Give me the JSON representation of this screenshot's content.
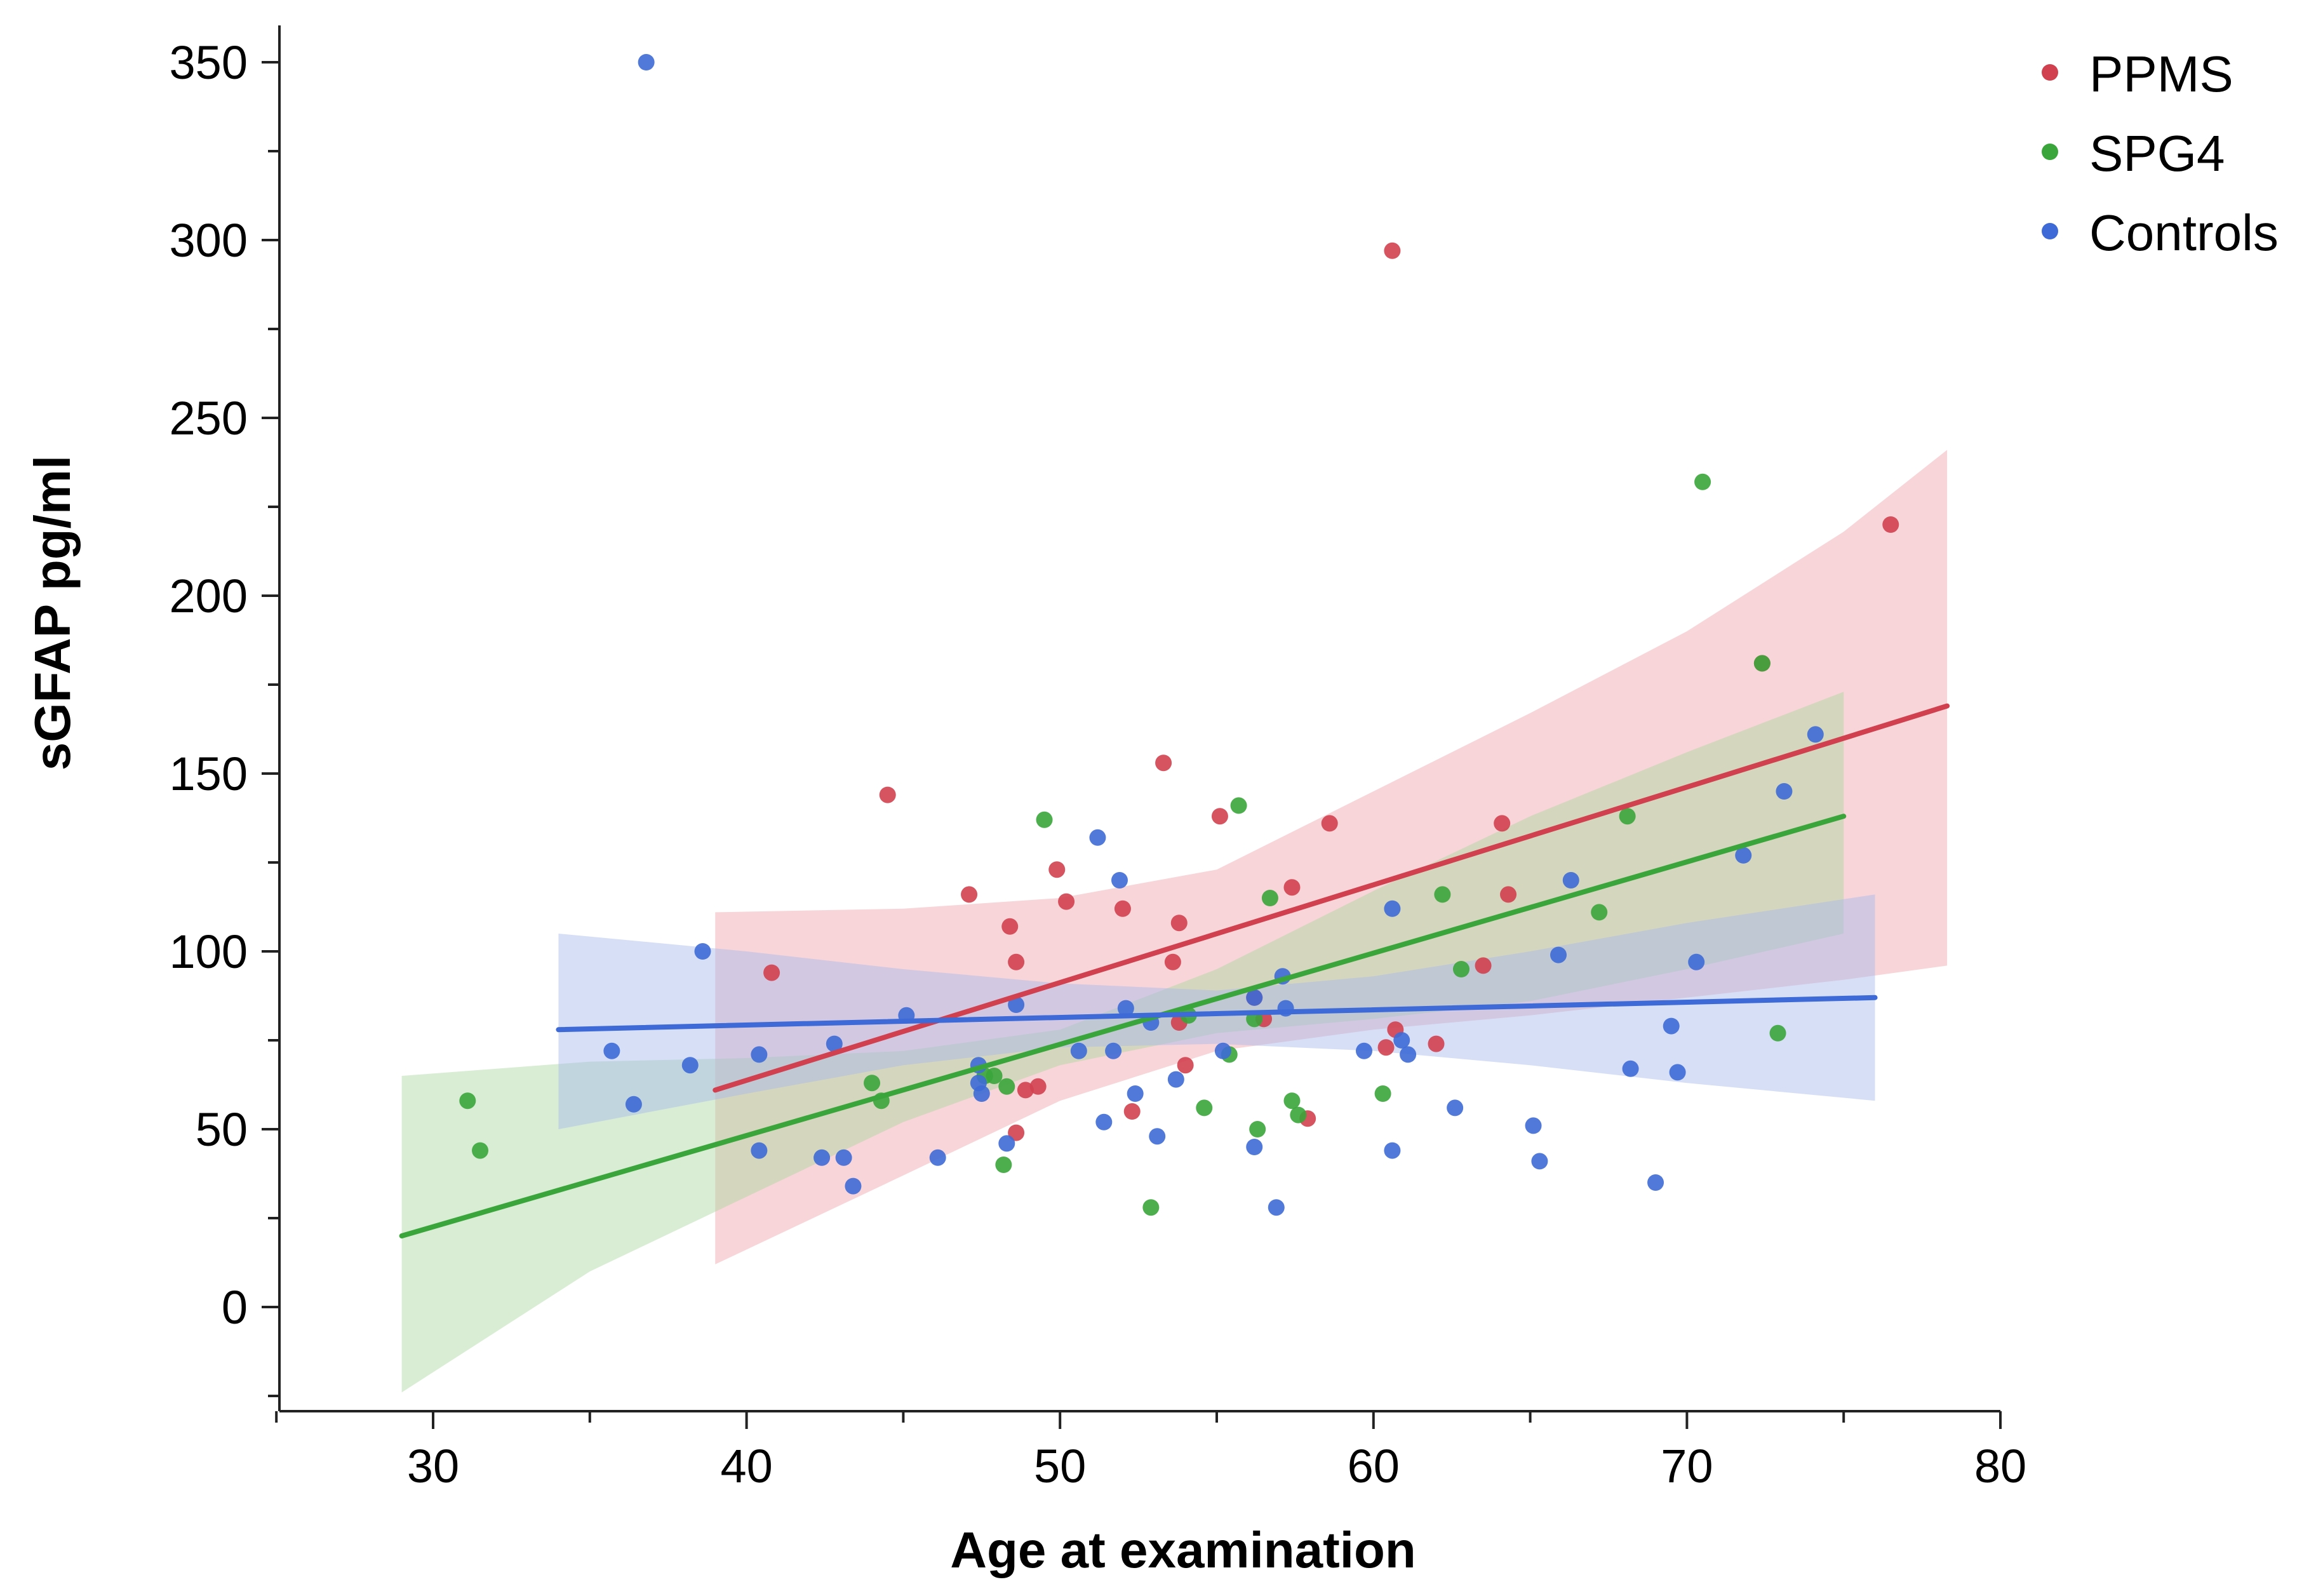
{
  "chart_data": {
    "type": "scatter",
    "title": "",
    "xlabel": "Age at examination",
    "ylabel": "sGFAP pg/ml",
    "xlim": [
      25,
      80
    ],
    "ylim": [
      -30,
      360
    ],
    "xticks": [
      30,
      40,
      50,
      60,
      70,
      80
    ],
    "yticks": [
      0,
      50,
      100,
      150,
      200,
      250,
      300,
      350
    ],
    "legend_position": "top-right",
    "series": [
      {
        "name": "PPMS",
        "color": "#d1404f",
        "opacity": 0.9,
        "band_color": "#ef9aa3",
        "band_opacity": 0.42,
        "points": [
          [
            40.8,
            94
          ],
          [
            44.5,
            144
          ],
          [
            47.1,
            116
          ],
          [
            48.4,
            107
          ],
          [
            48.6,
            97
          ],
          [
            48.6,
            49
          ],
          [
            48.9,
            61
          ],
          [
            49.3,
            62
          ],
          [
            49.9,
            123
          ],
          [
            50.2,
            114
          ],
          [
            52.0,
            112
          ],
          [
            52.3,
            55
          ],
          [
            53.3,
            153
          ],
          [
            53.6,
            97
          ],
          [
            53.8,
            108
          ],
          [
            53.8,
            80
          ],
          [
            54.0,
            68
          ],
          [
            55.1,
            138
          ],
          [
            56.2,
            87
          ],
          [
            56.5,
            81
          ],
          [
            57.4,
            118
          ],
          [
            57.9,
            53
          ],
          [
            58.6,
            136
          ],
          [
            60.4,
            73
          ],
          [
            60.6,
            297
          ],
          [
            60.7,
            78
          ],
          [
            62.0,
            74
          ],
          [
            63.5,
            96
          ],
          [
            64.1,
            136
          ],
          [
            64.3,
            116
          ],
          [
            72.4,
            181
          ],
          [
            76.5,
            220
          ]
        ],
        "fit": {
          "x": [
            39,
            78.3
          ],
          "y": [
            61,
            169
          ]
        },
        "band": {
          "x": [
            39,
            45,
            50,
            55,
            60,
            65,
            70,
            75,
            78.3
          ],
          "lower": [
            12,
            37,
            58,
            72,
            78,
            82,
            87,
            92,
            96
          ],
          "upper": [
            111,
            112,
            115,
            123,
            145,
            167,
            190,
            218,
            241
          ]
        }
      },
      {
        "name": "SPG4",
        "color": "#3aa53a",
        "opacity": 0.9,
        "band_color": "#a8d8a0",
        "band_opacity": 0.45,
        "points": [
          [
            31.1,
            58
          ],
          [
            31.5,
            44
          ],
          [
            44.0,
            63
          ],
          [
            44.3,
            58
          ],
          [
            47.6,
            65
          ],
          [
            47.9,
            65
          ],
          [
            48.2,
            40
          ],
          [
            48.3,
            62
          ],
          [
            49.5,
            137
          ],
          [
            52.9,
            28
          ],
          [
            54.1,
            82
          ],
          [
            54.6,
            56
          ],
          [
            55.4,
            71
          ],
          [
            55.7,
            141
          ],
          [
            56.2,
            81
          ],
          [
            56.3,
            50
          ],
          [
            56.7,
            115
          ],
          [
            57.4,
            58
          ],
          [
            57.6,
            54
          ],
          [
            60.3,
            60
          ],
          [
            62.2,
            116
          ],
          [
            62.8,
            95
          ],
          [
            67.2,
            111
          ],
          [
            68.1,
            138
          ],
          [
            70.5,
            232
          ],
          [
            72.4,
            181
          ],
          [
            72.9,
            77
          ]
        ],
        "fit": {
          "x": [
            29,
            75
          ],
          "y": [
            20,
            138
          ]
        },
        "band": {
          "x": [
            29,
            35,
            40,
            45,
            50,
            55,
            60,
            65,
            70,
            75
          ],
          "lower": [
            -24,
            10,
            31,
            52,
            68,
            77,
            81,
            86,
            95,
            105
          ],
          "upper": [
            65,
            69,
            70,
            72,
            78,
            95,
            117,
            138,
            156,
            173
          ]
        }
      },
      {
        "name": "Controls",
        "color": "#3d6ad6",
        "opacity": 0.9,
        "band_color": "#a6b7ee",
        "band_opacity": 0.45,
        "points": [
          [
            35.7,
            72
          ],
          [
            36.4,
            57
          ],
          [
            36.8,
            350
          ],
          [
            38.2,
            68
          ],
          [
            38.6,
            100
          ],
          [
            40.4,
            71
          ],
          [
            40.4,
            44
          ],
          [
            42.4,
            42
          ],
          [
            42.8,
            74
          ],
          [
            43.1,
            42
          ],
          [
            43.4,
            34
          ],
          [
            45.1,
            82
          ],
          [
            46.1,
            42
          ],
          [
            47.4,
            68
          ],
          [
            47.4,
            63
          ],
          [
            47.5,
            60
          ],
          [
            48.3,
            46
          ],
          [
            48.6,
            85
          ],
          [
            50.6,
            72
          ],
          [
            51.2,
            132
          ],
          [
            51.4,
            52
          ],
          [
            51.7,
            72
          ],
          [
            51.9,
            120
          ],
          [
            52.1,
            84
          ],
          [
            52.4,
            60
          ],
          [
            52.9,
            80
          ],
          [
            53.1,
            48
          ],
          [
            53.7,
            64
          ],
          [
            55.2,
            72
          ],
          [
            56.2,
            45
          ],
          [
            56.2,
            87
          ],
          [
            56.9,
            28
          ],
          [
            57.1,
            93
          ],
          [
            57.2,
            84
          ],
          [
            59.7,
            72
          ],
          [
            60.6,
            44
          ],
          [
            60.6,
            112
          ],
          [
            60.9,
            75
          ],
          [
            61.1,
            71
          ],
          [
            62.6,
            56
          ],
          [
            65.1,
            51
          ],
          [
            65.3,
            41
          ],
          [
            65.9,
            99
          ],
          [
            66.3,
            120
          ],
          [
            68.2,
            67
          ],
          [
            69.0,
            35
          ],
          [
            69.5,
            79
          ],
          [
            69.7,
            66
          ],
          [
            70.3,
            97
          ],
          [
            71.8,
            127
          ],
          [
            73.1,
            145
          ],
          [
            74.1,
            161
          ]
        ],
        "fit": {
          "x": [
            34,
            76
          ],
          "y": [
            78,
            87
          ]
        },
        "band": {
          "x": [
            34,
            40,
            45,
            50,
            55,
            60,
            65,
            70,
            76
          ],
          "lower": [
            50,
            60,
            68,
            73,
            74,
            72,
            68,
            63,
            58
          ],
          "upper": [
            105,
            100,
            95,
            91,
            89,
            93,
            100,
            108,
            116
          ]
        }
      }
    ]
  }
}
